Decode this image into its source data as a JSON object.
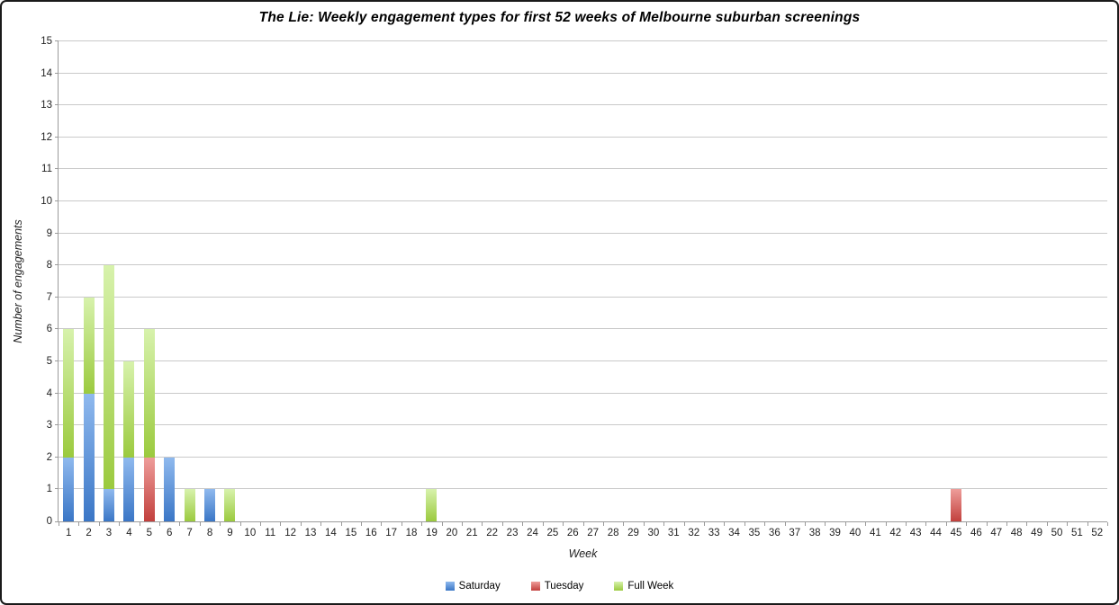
{
  "title": "The Lie: Weekly engagement types for first 52 weeks of Melbourne suburban screenings",
  "chart_data": {
    "type": "bar",
    "stacked": true,
    "title": "The Lie: Weekly engagement types for first 52 weeks of Melbourne suburban screenings",
    "xlabel": "Week",
    "ylabel": "Number of engagements",
    "ylim": [
      0,
      15
    ],
    "ytick_step": 1,
    "grid": true,
    "legend_position": "bottom",
    "categories": [
      1,
      2,
      3,
      4,
      5,
      6,
      7,
      8,
      9,
      10,
      11,
      12,
      13,
      14,
      15,
      16,
      17,
      18,
      19,
      20,
      21,
      22,
      23,
      24,
      25,
      26,
      27,
      28,
      29,
      30,
      31,
      32,
      33,
      34,
      35,
      36,
      37,
      38,
      39,
      40,
      41,
      42,
      43,
      44,
      45,
      46,
      47,
      48,
      49,
      50,
      51,
      52
    ],
    "series": [
      {
        "name": "Saturday",
        "color_top": "#8FB9EE",
        "color_bottom": "#3A76C6",
        "values": [
          2,
          4,
          1,
          2,
          0,
          2,
          0,
          1,
          0,
          0,
          0,
          0,
          0,
          0,
          0,
          0,
          0,
          0,
          0,
          0,
          0,
          0,
          0,
          0,
          0,
          0,
          0,
          0,
          0,
          0,
          0,
          0,
          0,
          0,
          0,
          0,
          0,
          0,
          0,
          0,
          0,
          0,
          0,
          0,
          0,
          0,
          0,
          0,
          0,
          0,
          0,
          0
        ]
      },
      {
        "name": "Tuesday",
        "color_top": "#EE9D9A",
        "color_bottom": "#C2403D",
        "values": [
          0,
          0,
          0,
          0,
          2,
          0,
          0,
          0,
          0,
          0,
          0,
          0,
          0,
          0,
          0,
          0,
          0,
          0,
          0,
          0,
          0,
          0,
          0,
          0,
          0,
          0,
          0,
          0,
          0,
          0,
          0,
          0,
          0,
          0,
          0,
          0,
          0,
          0,
          0,
          0,
          0,
          0,
          0,
          0,
          1,
          0,
          0,
          0,
          0,
          0,
          0,
          0
        ]
      },
      {
        "name": "Full Week",
        "color_top": "#D7F2AC",
        "color_bottom": "#9BCA3E",
        "values": [
          4,
          3,
          7,
          3,
          4,
          0,
          1,
          0,
          1,
          0,
          0,
          0,
          0,
          0,
          0,
          0,
          0,
          0,
          1,
          0,
          0,
          0,
          0,
          0,
          0,
          0,
          0,
          0,
          0,
          0,
          0,
          0,
          0,
          0,
          0,
          0,
          0,
          0,
          0,
          0,
          0,
          0,
          0,
          0,
          0,
          0,
          0,
          0,
          0,
          0,
          0,
          0
        ]
      }
    ],
    "totals_by_week_nonzero": {
      "1": 6,
      "2": 7,
      "3": 8,
      "4": 5,
      "5": 6,
      "6": 2,
      "7": 1,
      "8": 1,
      "9": 1,
      "19": 1,
      "45": 1
    },
    "colors": {
      "gridline": "#C9C9C9",
      "axis": "#9B9B9B",
      "text": "#1F1F1F"
    }
  }
}
